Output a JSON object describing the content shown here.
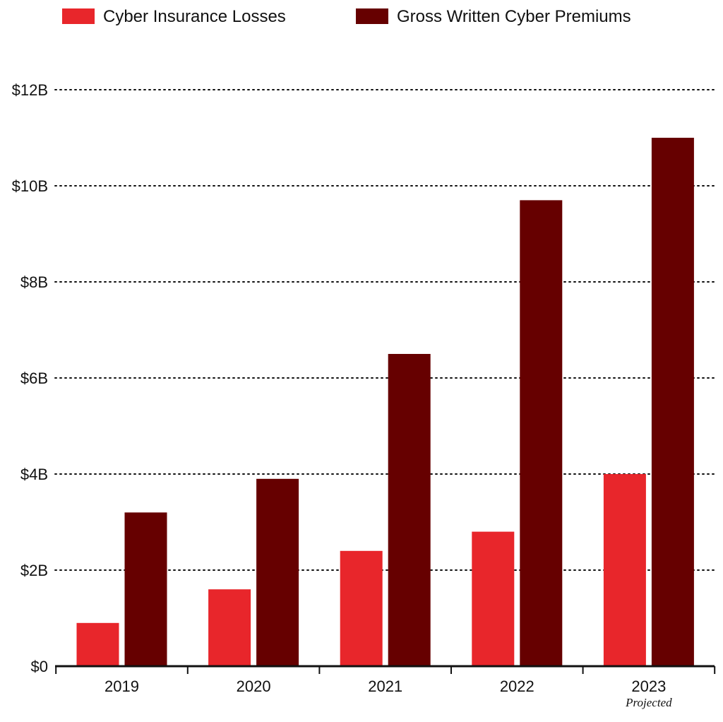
{
  "chart_data": {
    "type": "bar",
    "categories": [
      "2019",
      "2020",
      "2021",
      "2022",
      "2023"
    ],
    "category_notes": [
      "",
      "",
      "",
      "",
      "Projected"
    ],
    "series": [
      {
        "name": "Cyber Insurance Losses",
        "color": "#e8262b",
        "values": [
          0.9,
          1.6,
          2.4,
          2.8,
          4.0
        ]
      },
      {
        "name": "Gross Written Cyber Premiums",
        "color": "#660000",
        "values": [
          3.2,
          3.9,
          6.5,
          9.7,
          11.0
        ]
      }
    ],
    "y_ticks": [
      0,
      2,
      4,
      6,
      8,
      10,
      12
    ],
    "y_tick_labels": [
      "$0",
      "$2B",
      "$4B",
      "$6B",
      "$8B",
      "$10B",
      "$12B"
    ],
    "ylim": [
      0,
      12
    ],
    "grid": true,
    "legend_position": "top-left",
    "title": "",
    "xlabel": "",
    "ylabel": ""
  }
}
